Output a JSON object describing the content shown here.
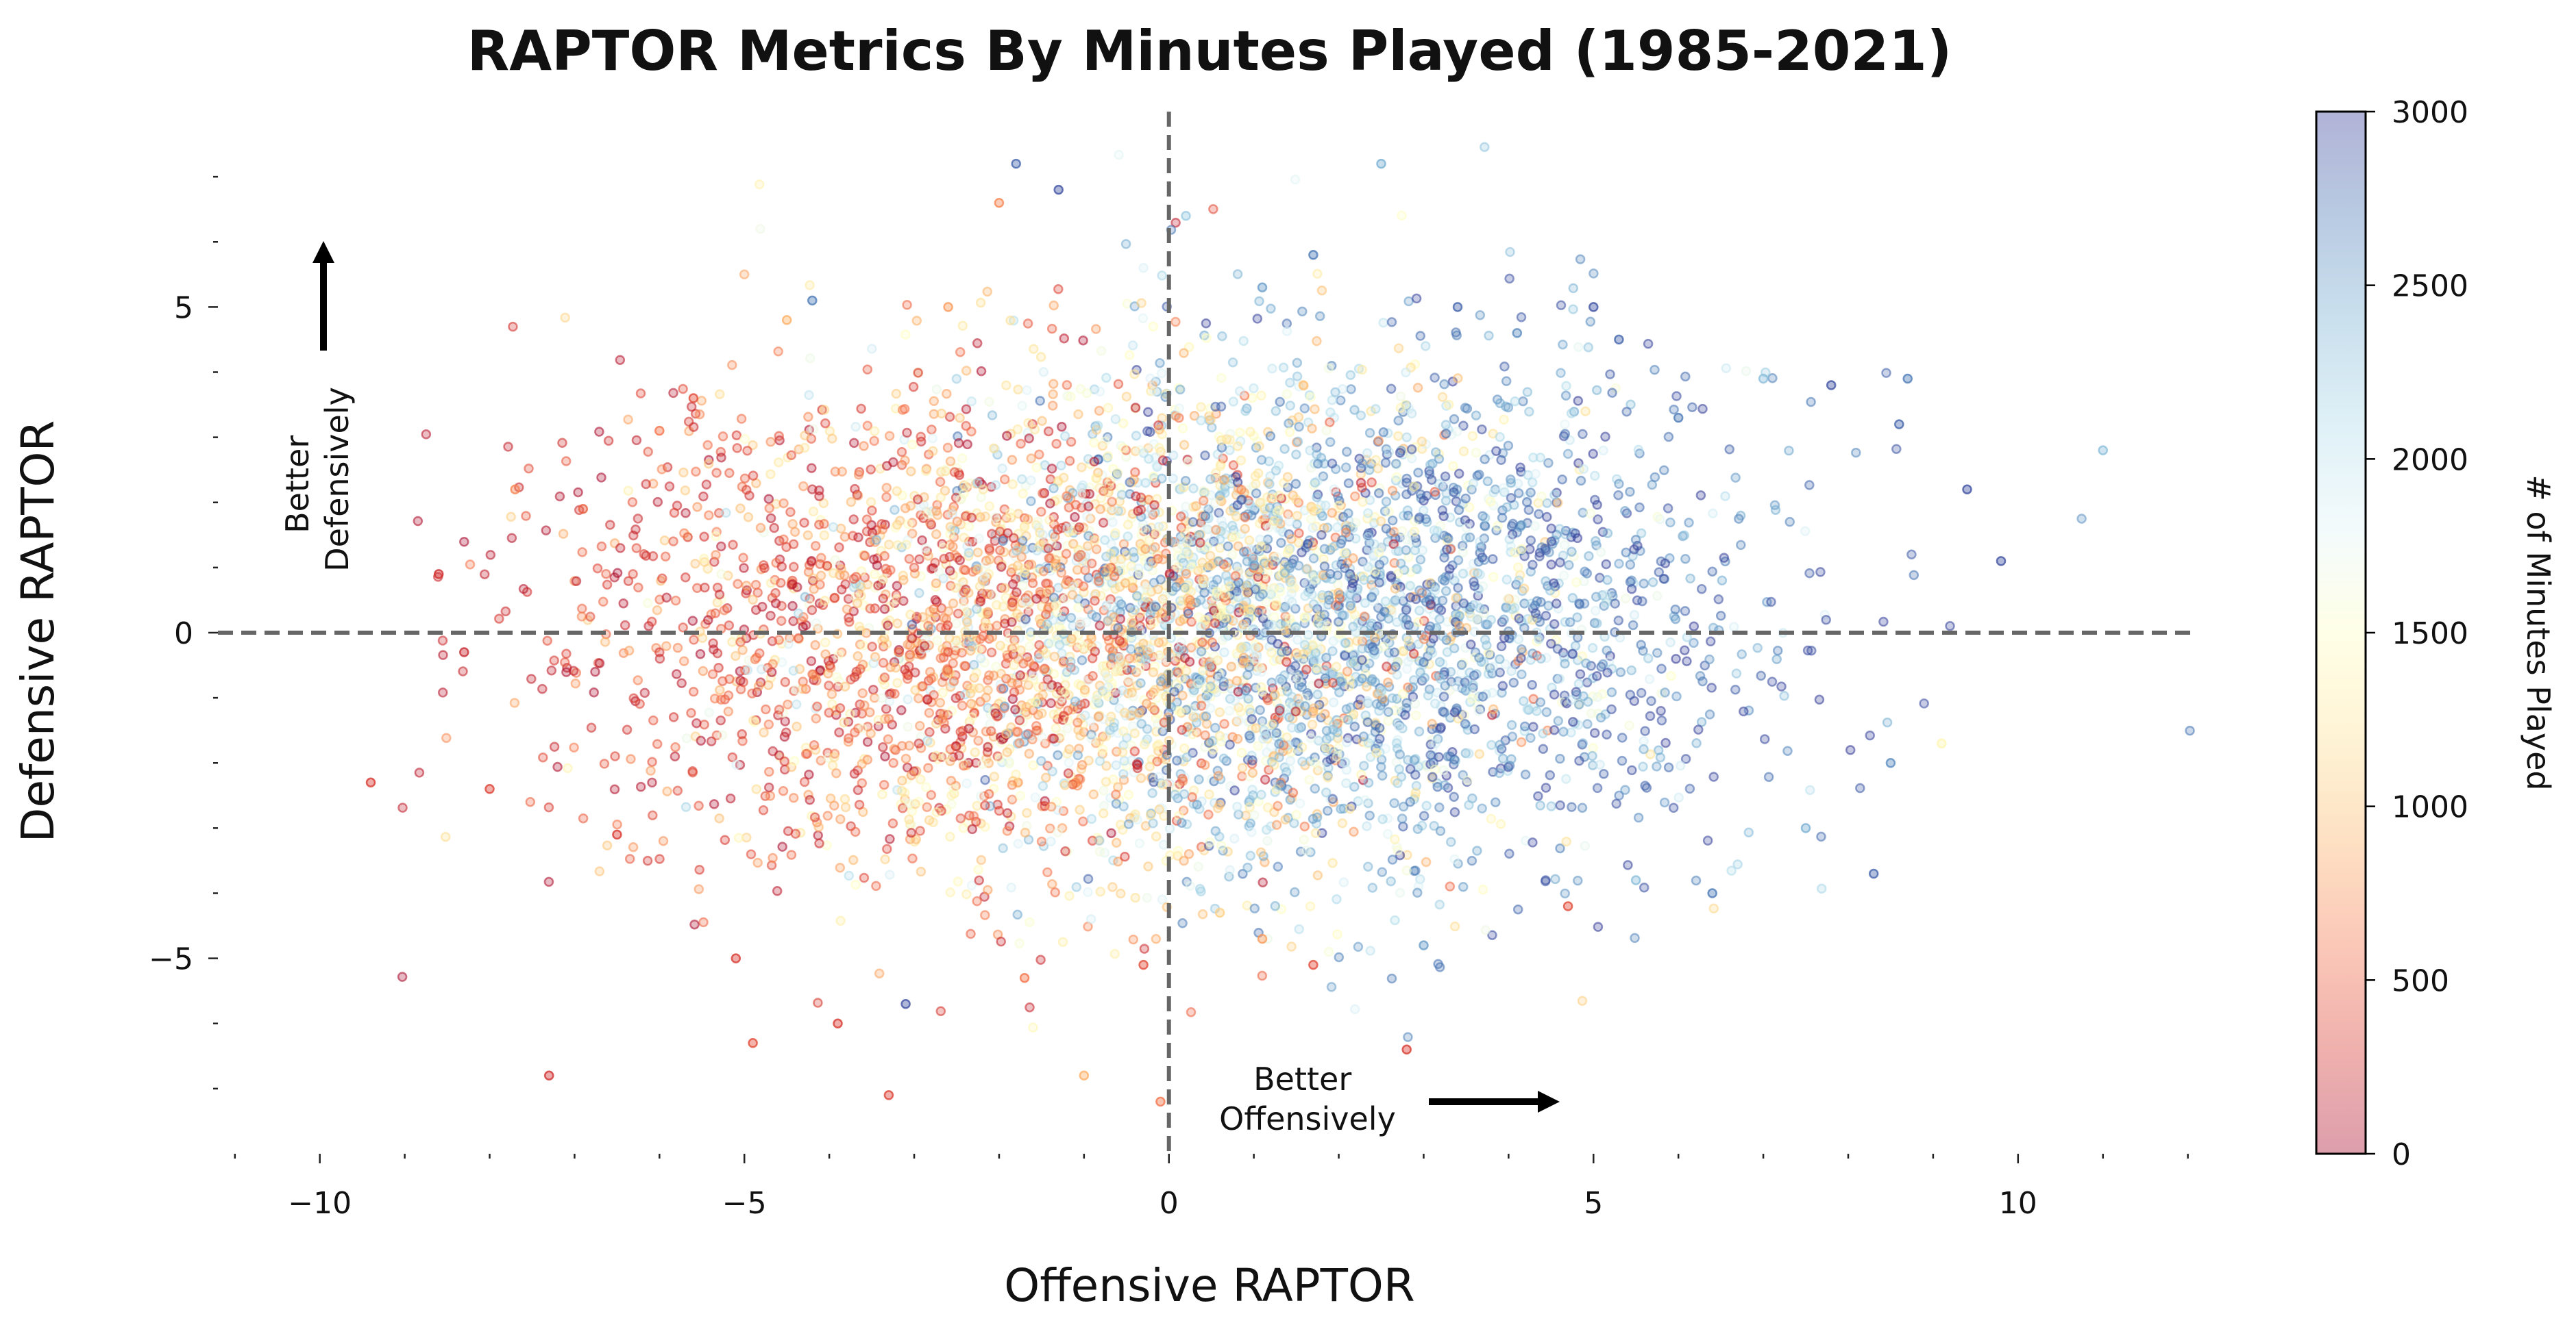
{
  "chart_data": {
    "type": "scatter",
    "title": "RAPTOR Metrics By Minutes Played (1985-2021)",
    "xlabel": "Offensive RAPTOR",
    "ylabel": "Defensive RAPTOR",
    "xlim": [
      -11.2,
      12.1
    ],
    "ylim": [
      -8,
      8
    ],
    "xticks": [
      -10,
      -5,
      0,
      5,
      10
    ],
    "xtick_labels": [
      "−10",
      "−5",
      "0",
      "5",
      "10"
    ],
    "yticks": [
      -5,
      0,
      5
    ],
    "ytick_labels": [
      "−5",
      "0",
      "5"
    ],
    "reference_lines": {
      "x": 0,
      "y": 0,
      "style": "dashed"
    },
    "grid": false,
    "colorbar": {
      "label": "# of Minutes Played",
      "ticks": [
        0,
        500,
        1000,
        1500,
        2000,
        2500,
        3000
      ],
      "range": [
        0,
        3000
      ],
      "colormap": "RdYlBu",
      "stops": [
        "#a50026",
        "#d73027",
        "#f46d43",
        "#fdae61",
        "#fee090",
        "#ffffbf",
        "#e0f3f8",
        "#abd9e9",
        "#74add1",
        "#4575b4",
        "#313695"
      ]
    },
    "annotations": [
      {
        "text": "Better Defensively",
        "lines": [
          "Better",
          "Defensively"
        ],
        "arrow": "up"
      },
      {
        "text": "Better Offensively",
        "lines": [
          "Better",
          "Offensively"
        ],
        "arrow": "right"
      }
    ],
    "series": [
      {
        "color_by": "minutes",
        "points": [
          {
            "x": -9.4,
            "y": -2.3,
            "m": 300
          },
          {
            "x": -8.6,
            "y": 0.9,
            "m": 250
          },
          {
            "x": -8.3,
            "y": -0.3,
            "m": 200
          },
          {
            "x": -7.7,
            "y": 2.2,
            "m": 700
          },
          {
            "x": -7.3,
            "y": -6.8,
            "m": 250
          },
          {
            "x": -8.0,
            "y": -2.4,
            "m": 350
          },
          {
            "x": -6.9,
            "y": 1.9,
            "m": 500
          },
          {
            "x": -6.5,
            "y": -3.1,
            "m": 300
          },
          {
            "x": -6.0,
            "y": 3.1,
            "m": 600
          },
          {
            "x": -5.6,
            "y": 3.6,
            "m": 400
          },
          {
            "x": -5.1,
            "y": -5.0,
            "m": 300
          },
          {
            "x": -4.9,
            "y": -6.3,
            "m": 400
          },
          {
            "x": -4.5,
            "y": 4.8,
            "m": 900
          },
          {
            "x": -4.2,
            "y": 5.1,
            "m": 2700
          },
          {
            "x": -3.9,
            "y": -6.0,
            "m": 300
          },
          {
            "x": -3.3,
            "y": -7.1,
            "m": 350
          },
          {
            "x": -3.1,
            "y": -5.7,
            "m": 2900
          },
          {
            "x": -2.6,
            "y": 5.0,
            "m": 800
          },
          {
            "x": -2.0,
            "y": 6.6,
            "m": 700
          },
          {
            "x": -1.8,
            "y": 7.2,
            "m": 2800
          },
          {
            "x": -1.3,
            "y": 6.8,
            "m": 2900
          },
          {
            "x": -1.7,
            "y": -5.3,
            "m": 600
          },
          {
            "x": -1.0,
            "y": -6.8,
            "m": 900
          },
          {
            "x": -0.3,
            "y": -5.1,
            "m": 400
          },
          {
            "x": -0.1,
            "y": -7.2,
            "m": 600
          },
          {
            "x": -0.3,
            "y": 5.6,
            "m": 1800
          },
          {
            "x": 0.2,
            "y": 6.4,
            "m": 2200
          },
          {
            "x": 1.1,
            "y": 5.3,
            "m": 2500
          },
          {
            "x": 1.7,
            "y": 5.8,
            "m": 2700
          },
          {
            "x": 2.5,
            "y": 7.2,
            "m": 2400
          },
          {
            "x": 3.4,
            "y": 5.0,
            "m": 2800
          },
          {
            "x": 4.1,
            "y": 4.6,
            "m": 2600
          },
          {
            "x": 5.0,
            "y": 5.0,
            "m": 2900
          },
          {
            "x": 5.3,
            "y": 4.5,
            "m": 2800
          },
          {
            "x": 6.0,
            "y": 3.3,
            "m": 2700
          },
          {
            "x": 7.0,
            "y": 3.9,
            "m": 2300
          },
          {
            "x": 7.8,
            "y": 3.8,
            "m": 2900
          },
          {
            "x": 8.6,
            "y": 3.2,
            "m": 2800
          },
          {
            "x": 8.7,
            "y": 3.9,
            "m": 2700
          },
          {
            "x": 9.4,
            "y": 2.2,
            "m": 2900
          },
          {
            "x": 9.8,
            "y": 1.1,
            "m": 2900
          },
          {
            "x": 11.0,
            "y": 2.8,
            "m": 2300
          },
          {
            "x": 9.1,
            "y": -1.7,
            "m": 1400
          },
          {
            "x": 8.5,
            "y": -2.0,
            "m": 2600
          },
          {
            "x": 8.3,
            "y": -3.7,
            "m": 2800
          },
          {
            "x": 7.5,
            "y": -3.0,
            "m": 2400
          },
          {
            "x": 6.4,
            "y": -4.0,
            "m": 2700
          },
          {
            "x": 5.5,
            "y": -3.8,
            "m": 2300
          },
          {
            "x": 4.7,
            "y": -4.2,
            "m": 400
          },
          {
            "x": 3.0,
            "y": -4.8,
            "m": 2500
          },
          {
            "x": 2.8,
            "y": -6.4,
            "m": 300
          },
          {
            "x": 1.7,
            "y": -5.1,
            "m": 400
          },
          {
            "x": 1.1,
            "y": -4.7,
            "m": 800
          },
          {
            "x": 0.6,
            "y": -4.3,
            "m": 1100
          }
        ]
      }
    ]
  }
}
